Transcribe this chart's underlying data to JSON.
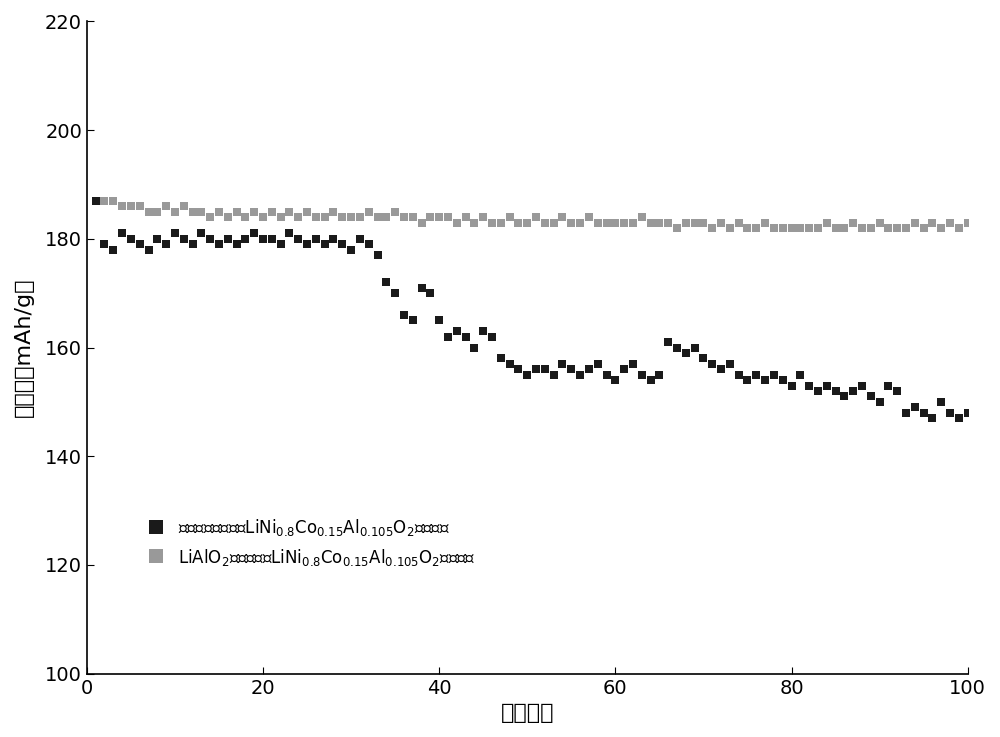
{
  "title": "",
  "xlabel": "循环次数",
  "ylabel": "比容量（mAh/g）",
  "xlim": [
    0,
    100
  ],
  "ylim": [
    100,
    220
  ],
  "xticks": [
    0,
    20,
    40,
    60,
    80,
    100
  ],
  "yticks": [
    100,
    120,
    140,
    160,
    180,
    200,
    220
  ],
  "black_x": [
    1,
    2,
    3,
    4,
    5,
    6,
    7,
    8,
    9,
    10,
    11,
    12,
    13,
    14,
    15,
    16,
    17,
    18,
    19,
    20,
    21,
    22,
    23,
    24,
    25,
    26,
    27,
    28,
    29,
    30,
    31,
    32,
    33,
    34,
    35,
    36,
    37,
    38,
    39,
    40,
    41,
    42,
    43,
    44,
    45,
    46,
    47,
    48,
    49,
    50,
    51,
    52,
    53,
    54,
    55,
    56,
    57,
    58,
    59,
    60,
    61,
    62,
    63,
    64,
    65,
    66,
    67,
    68,
    69,
    70,
    71,
    72,
    73,
    74,
    75,
    76,
    77,
    78,
    79,
    80,
    81,
    82,
    83,
    84,
    85,
    86,
    87,
    88,
    89,
    90,
    91,
    92,
    93,
    94,
    95,
    96,
    97,
    98,
    99,
    100
  ],
  "black_y": [
    187,
    179,
    178,
    181,
    180,
    179,
    178,
    180,
    179,
    181,
    180,
    179,
    181,
    180,
    179,
    180,
    179,
    180,
    181,
    180,
    180,
    179,
    181,
    180,
    179,
    180,
    179,
    180,
    179,
    178,
    180,
    179,
    177,
    172,
    170,
    166,
    165,
    171,
    170,
    165,
    162,
    163,
    162,
    160,
    163,
    162,
    158,
    157,
    156,
    155,
    156,
    156,
    155,
    157,
    156,
    155,
    156,
    157,
    155,
    154,
    156,
    157,
    155,
    154,
    155,
    161,
    160,
    159,
    160,
    158,
    157,
    156,
    157,
    155,
    154,
    155,
    154,
    155,
    154,
    153,
    155,
    153,
    152,
    153,
    152,
    151,
    152,
    153,
    151,
    150,
    153,
    152,
    148,
    149,
    148,
    147,
    150,
    148,
    147,
    148
  ],
  "gray_x": [
    1,
    2,
    3,
    4,
    5,
    6,
    7,
    8,
    9,
    10,
    11,
    12,
    13,
    14,
    15,
    16,
    17,
    18,
    19,
    20,
    21,
    22,
    23,
    24,
    25,
    26,
    27,
    28,
    29,
    30,
    31,
    32,
    33,
    34,
    35,
    36,
    37,
    38,
    39,
    40,
    41,
    42,
    43,
    44,
    45,
    46,
    47,
    48,
    49,
    50,
    51,
    52,
    53,
    54,
    55,
    56,
    57,
    58,
    59,
    60,
    61,
    62,
    63,
    64,
    65,
    66,
    67,
    68,
    69,
    70,
    71,
    72,
    73,
    74,
    75,
    76,
    77,
    78,
    79,
    80,
    81,
    82,
    83,
    84,
    85,
    86,
    87,
    88,
    89,
    90,
    91,
    92,
    93,
    94,
    95,
    96,
    97,
    98,
    99,
    100
  ],
  "gray_y": [
    187,
    187,
    187,
    186,
    186,
    186,
    185,
    185,
    186,
    185,
    186,
    185,
    185,
    184,
    185,
    184,
    185,
    184,
    185,
    184,
    185,
    184,
    185,
    184,
    185,
    184,
    184,
    185,
    184,
    184,
    184,
    185,
    184,
    184,
    185,
    184,
    184,
    183,
    184,
    184,
    184,
    183,
    184,
    183,
    184,
    183,
    183,
    184,
    183,
    183,
    184,
    183,
    183,
    184,
    183,
    183,
    184,
    183,
    183,
    183,
    183,
    183,
    184,
    183,
    183,
    183,
    182,
    183,
    183,
    183,
    182,
    183,
    182,
    183,
    182,
    182,
    183,
    182,
    182,
    182,
    182,
    182,
    182,
    183,
    182,
    182,
    183,
    182,
    182,
    183,
    182,
    182,
    182,
    183,
    182,
    183,
    182,
    183,
    182,
    183
  ],
  "black_color": "#1a1a1a",
  "gray_color": "#999999",
  "marker_size": 36,
  "bg_color": "#ffffff",
  "tick_fontsize": 14,
  "label_fontsize": 16,
  "legend_fontsize": 12
}
